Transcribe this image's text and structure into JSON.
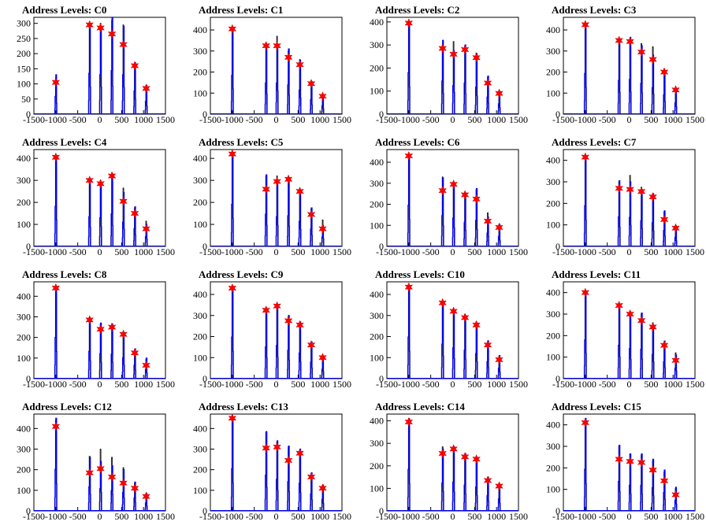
{
  "chart_data": [
    {
      "type": "histogram",
      "title": "Address Levels: C0",
      "xlim": [
        -1500,
        1500
      ],
      "ylim": [
        0,
        320
      ],
      "yticks": [
        0,
        50,
        100,
        150,
        200,
        250,
        300
      ],
      "xticks": [
        -1500,
        -1000,
        -500,
        0,
        500,
        1000,
        1500
      ],
      "peaks": [
        {
          "x": -1000,
          "blue": 130,
          "black": 120,
          "star": 105
        },
        {
          "x": -230,
          "blue": 300,
          "black": 300,
          "star": 295
        },
        {
          "x": 20,
          "blue": 290,
          "black": 300,
          "star": 285
        },
        {
          "x": 280,
          "blue": 320,
          "black": 310,
          "star": 265
        },
        {
          "x": 540,
          "blue": 290,
          "black": 295,
          "star": 230
        },
        {
          "x": 800,
          "blue": 170,
          "black": 165,
          "star": 160
        },
        {
          "x": 1060,
          "blue": 95,
          "black": 90,
          "star": 85
        }
      ]
    },
    {
      "type": "histogram",
      "title": "Address Levels: C1",
      "xlim": [
        -1500,
        1500
      ],
      "ylim": [
        0,
        460
      ],
      "yticks": [
        0,
        100,
        200,
        300,
        400
      ],
      "xticks": [
        -1500,
        -1000,
        -500,
        0,
        500,
        1000,
        1500
      ],
      "peaks": [
        {
          "x": -1000,
          "blue": 410,
          "black": 400,
          "star": 405
        },
        {
          "x": -230,
          "blue": 330,
          "black": 320,
          "star": 325
        },
        {
          "x": 20,
          "blue": 330,
          "black": 370,
          "star": 325
        },
        {
          "x": 280,
          "blue": 310,
          "black": 300,
          "star": 270
        },
        {
          "x": 540,
          "blue": 255,
          "black": 260,
          "star": 235
        },
        {
          "x": 800,
          "blue": 155,
          "black": 150,
          "star": 145
        },
        {
          "x": 1060,
          "blue": 90,
          "black": 85,
          "star": 85
        }
      ]
    },
    {
      "type": "histogram",
      "title": "Address Levels: C2",
      "xlim": [
        -1500,
        1500
      ],
      "ylim": [
        0,
        420
      ],
      "yticks": [
        0,
        100,
        200,
        300,
        400
      ],
      "xticks": [
        -1500,
        -1000,
        -500,
        0,
        500,
        1000,
        1500
      ],
      "peaks": [
        {
          "x": -1000,
          "blue": 400,
          "black": 395,
          "star": 395
        },
        {
          "x": -230,
          "blue": 320,
          "black": 300,
          "star": 285
        },
        {
          "x": 20,
          "blue": 275,
          "black": 315,
          "star": 260
        },
        {
          "x": 280,
          "blue": 300,
          "black": 295,
          "star": 280
        },
        {
          "x": 540,
          "blue": 260,
          "black": 265,
          "star": 245
        },
        {
          "x": 800,
          "blue": 165,
          "black": 160,
          "star": 135
        },
        {
          "x": 1060,
          "blue": 100,
          "black": 95,
          "star": 90
        }
      ]
    },
    {
      "type": "histogram",
      "title": "Address Levels: C3",
      "xlim": [
        -1500,
        1500
      ],
      "ylim": [
        0,
        460
      ],
      "yticks": [
        0,
        100,
        200,
        300,
        400
      ],
      "xticks": [
        -1500,
        -1000,
        -500,
        0,
        500,
        1000,
        1500
      ],
      "peaks": [
        {
          "x": -1000,
          "blue": 430,
          "black": 420,
          "star": 425
        },
        {
          "x": -230,
          "blue": 355,
          "black": 345,
          "star": 350
        },
        {
          "x": 20,
          "blue": 365,
          "black": 355,
          "star": 345
        },
        {
          "x": 280,
          "blue": 325,
          "black": 335,
          "star": 295
        },
        {
          "x": 540,
          "blue": 280,
          "black": 320,
          "star": 260
        },
        {
          "x": 800,
          "blue": 205,
          "black": 200,
          "star": 200
        },
        {
          "x": 1060,
          "blue": 120,
          "black": 115,
          "star": 115
        }
      ]
    },
    {
      "type": "histogram",
      "title": "Address Levels: C4",
      "xlim": [
        -1500,
        1500
      ],
      "ylim": [
        0,
        440
      ],
      "yticks": [
        0,
        100,
        200,
        300,
        400
      ],
      "xticks": [
        -1500,
        -1000,
        -500,
        0,
        500,
        1000,
        1500
      ],
      "peaks": [
        {
          "x": -1000,
          "blue": 405,
          "black": 400,
          "star": 405
        },
        {
          "x": -230,
          "blue": 300,
          "black": 290,
          "star": 300
        },
        {
          "x": 20,
          "blue": 290,
          "black": 300,
          "star": 285
        },
        {
          "x": 280,
          "blue": 330,
          "black": 320,
          "star": 320
        },
        {
          "x": 540,
          "blue": 245,
          "black": 265,
          "star": 205
        },
        {
          "x": 800,
          "blue": 180,
          "black": 175,
          "star": 150
        },
        {
          "x": 1060,
          "blue": 100,
          "black": 115,
          "star": 80
        }
      ]
    },
    {
      "type": "histogram",
      "title": "Address Levels: C5",
      "xlim": [
        -1500,
        1500
      ],
      "ylim": [
        0,
        440
      ],
      "yticks": [
        0,
        100,
        200,
        300,
        400
      ],
      "xticks": [
        -1500,
        -1000,
        -500,
        0,
        500,
        1000,
        1500
      ],
      "peaks": [
        {
          "x": -1000,
          "blue": 425,
          "black": 420,
          "star": 420
        },
        {
          "x": -230,
          "blue": 325,
          "black": 320,
          "star": 260
        },
        {
          "x": 20,
          "blue": 300,
          "black": 320,
          "star": 295
        },
        {
          "x": 280,
          "blue": 310,
          "black": 305,
          "star": 305
        },
        {
          "x": 540,
          "blue": 255,
          "black": 260,
          "star": 250
        },
        {
          "x": 800,
          "blue": 175,
          "black": 170,
          "star": 145
        },
        {
          "x": 1060,
          "blue": 95,
          "black": 120,
          "star": 80
        }
      ]
    },
    {
      "type": "histogram",
      "title": "Address Levels: C6",
      "xlim": [
        -1500,
        1500
      ],
      "ylim": [
        0,
        460
      ],
      "yticks": [
        0,
        100,
        200,
        300,
        400
      ],
      "xticks": [
        -1500,
        -1000,
        -500,
        0,
        500,
        1000,
        1500
      ],
      "peaks": [
        {
          "x": -1000,
          "blue": 435,
          "black": 430,
          "star": 430
        },
        {
          "x": -230,
          "blue": 325,
          "black": 330,
          "star": 265
        },
        {
          "x": 20,
          "blue": 300,
          "black": 295,
          "star": 295
        },
        {
          "x": 280,
          "blue": 255,
          "black": 250,
          "star": 245
        },
        {
          "x": 540,
          "blue": 275,
          "black": 270,
          "star": 225
        },
        {
          "x": 800,
          "blue": 140,
          "black": 160,
          "star": 120
        },
        {
          "x": 1060,
          "blue": 105,
          "black": 100,
          "star": 90
        }
      ]
    },
    {
      "type": "histogram",
      "title": "Address Levels: C7",
      "xlim": [
        -1500,
        1500
      ],
      "ylim": [
        0,
        450
      ],
      "yticks": [
        0,
        100,
        200,
        300,
        400
      ],
      "xticks": [
        -1500,
        -1000,
        -500,
        0,
        500,
        1000,
        1500
      ],
      "peaks": [
        {
          "x": -1000,
          "blue": 420,
          "black": 410,
          "star": 415
        },
        {
          "x": -230,
          "blue": 305,
          "black": 300,
          "star": 270
        },
        {
          "x": 20,
          "blue": 300,
          "black": 330,
          "star": 265
        },
        {
          "x": 280,
          "blue": 265,
          "black": 275,
          "star": 255
        },
        {
          "x": 540,
          "blue": 245,
          "black": 240,
          "star": 230
        },
        {
          "x": 800,
          "blue": 165,
          "black": 160,
          "star": 125
        },
        {
          "x": 1060,
          "blue": 95,
          "black": 90,
          "star": 85
        }
      ]
    },
    {
      "type": "histogram",
      "title": "Address Levels: C8",
      "xlim": [
        -1500,
        1500
      ],
      "ylim": [
        0,
        470
      ],
      "yticks": [
        0,
        100,
        200,
        300,
        400
      ],
      "xticks": [
        -1500,
        -1000,
        -500,
        0,
        500,
        1000,
        1500
      ],
      "peaks": [
        {
          "x": -1000,
          "blue": 445,
          "black": 440,
          "star": 440
        },
        {
          "x": -230,
          "blue": 295,
          "black": 290,
          "star": 285
        },
        {
          "x": 20,
          "blue": 270,
          "black": 265,
          "star": 240
        },
        {
          "x": 280,
          "blue": 265,
          "black": 260,
          "star": 250
        },
        {
          "x": 540,
          "blue": 225,
          "black": 220,
          "star": 215
        },
        {
          "x": 800,
          "blue": 145,
          "black": 140,
          "star": 125
        },
        {
          "x": 1060,
          "blue": 100,
          "black": 95,
          "star": 65
        }
      ]
    },
    {
      "type": "histogram",
      "title": "Address Levels: C9",
      "xlim": [
        -1500,
        1500
      ],
      "ylim": [
        0,
        460
      ],
      "yticks": [
        0,
        100,
        200,
        300,
        400
      ],
      "xticks": [
        -1500,
        -1000,
        -500,
        0,
        500,
        1000,
        1500
      ],
      "peaks": [
        {
          "x": -1000,
          "blue": 440,
          "black": 430,
          "star": 430
        },
        {
          "x": -230,
          "blue": 335,
          "black": 330,
          "star": 325
        },
        {
          "x": 20,
          "blue": 350,
          "black": 345,
          "star": 345
        },
        {
          "x": 280,
          "blue": 300,
          "black": 295,
          "star": 275
        },
        {
          "x": 540,
          "blue": 270,
          "black": 265,
          "star": 255
        },
        {
          "x": 800,
          "blue": 175,
          "black": 170,
          "star": 160
        },
        {
          "x": 1060,
          "blue": 100,
          "black": 110,
          "star": 100
        }
      ]
    },
    {
      "type": "histogram",
      "title": "Address Levels: C10",
      "xlim": [
        -1500,
        1500
      ],
      "ylim": [
        0,
        460
      ],
      "yticks": [
        0,
        100,
        200,
        300,
        400
      ],
      "xticks": [
        -1500,
        -1000,
        -500,
        0,
        500,
        1000,
        1500
      ],
      "peaks": [
        {
          "x": -1000,
          "blue": 440,
          "black": 435,
          "star": 435
        },
        {
          "x": -230,
          "blue": 365,
          "black": 360,
          "star": 360
        },
        {
          "x": 20,
          "blue": 325,
          "black": 320,
          "star": 320
        },
        {
          "x": 280,
          "blue": 300,
          "black": 305,
          "star": 290
        },
        {
          "x": 540,
          "blue": 265,
          "black": 270,
          "star": 255
        },
        {
          "x": 800,
          "blue": 180,
          "black": 175,
          "star": 160
        },
        {
          "x": 1060,
          "blue": 110,
          "black": 105,
          "star": 90
        }
      ]
    },
    {
      "type": "histogram",
      "title": "Address Levels: C11",
      "xlim": [
        -1500,
        1500
      ],
      "ylim": [
        0,
        450
      ],
      "yticks": [
        0,
        100,
        200,
        300,
        400
      ],
      "xticks": [
        -1500,
        -1000,
        -500,
        0,
        500,
        1000,
        1500
      ],
      "peaks": [
        {
          "x": -1000,
          "blue": 400,
          "black": 395,
          "star": 400
        },
        {
          "x": -230,
          "blue": 345,
          "black": 340,
          "star": 340
        },
        {
          "x": 20,
          "blue": 310,
          "black": 300,
          "star": 300
        },
        {
          "x": 280,
          "blue": 305,
          "black": 300,
          "star": 270
        },
        {
          "x": 540,
          "blue": 250,
          "black": 260,
          "star": 240
        },
        {
          "x": 800,
          "blue": 175,
          "black": 170,
          "star": 155
        },
        {
          "x": 1060,
          "blue": 110,
          "black": 120,
          "star": 85
        }
      ]
    },
    {
      "type": "histogram",
      "title": "Address Levels: C12",
      "xlim": [
        -1500,
        1500
      ],
      "ylim": [
        0,
        470
      ],
      "yticks": [
        0,
        100,
        200,
        300,
        400
      ],
      "xticks": [
        -1500,
        -1000,
        -500,
        0,
        500,
        1000,
        1500
      ],
      "peaks": [
        {
          "x": -1000,
          "blue": 450,
          "black": 440,
          "star": 410
        },
        {
          "x": -230,
          "blue": 260,
          "black": 265,
          "star": 185
        },
        {
          "x": 20,
          "blue": 240,
          "black": 300,
          "star": 205
        },
        {
          "x": 280,
          "blue": 220,
          "black": 260,
          "star": 165
        },
        {
          "x": 540,
          "blue": 200,
          "black": 210,
          "star": 135
        },
        {
          "x": 800,
          "blue": 140,
          "black": 135,
          "star": 110
        },
        {
          "x": 1060,
          "blue": 85,
          "black": 80,
          "star": 70
        }
      ]
    },
    {
      "type": "histogram",
      "title": "Address Levels: C13",
      "xlim": [
        -1500,
        1500
      ],
      "ylim": [
        0,
        470
      ],
      "yticks": [
        0,
        100,
        200,
        300,
        400
      ],
      "xticks": [
        -1500,
        -1000,
        -500,
        0,
        500,
        1000,
        1500
      ],
      "peaks": [
        {
          "x": -1000,
          "blue": 455,
          "black": 450,
          "star": 450
        },
        {
          "x": -230,
          "blue": 385,
          "black": 380,
          "star": 305
        },
        {
          "x": 20,
          "blue": 340,
          "black": 335,
          "star": 310
        },
        {
          "x": 280,
          "blue": 315,
          "black": 310,
          "star": 245
        },
        {
          "x": 540,
          "blue": 300,
          "black": 295,
          "star": 280
        },
        {
          "x": 800,
          "blue": 185,
          "black": 180,
          "star": 165
        },
        {
          "x": 1060,
          "blue": 125,
          "black": 120,
          "star": 110
        }
      ]
    },
    {
      "type": "histogram",
      "title": "Address Levels: C14",
      "xlim": [
        -1500,
        1500
      ],
      "ylim": [
        0,
        430
      ],
      "yticks": [
        0,
        100,
        200,
        300,
        400
      ],
      "xticks": [
        -1500,
        -1000,
        -500,
        0,
        500,
        1000,
        1500
      ],
      "peaks": [
        {
          "x": -1000,
          "blue": 410,
          "black": 405,
          "star": 395
        },
        {
          "x": -230,
          "blue": 275,
          "black": 285,
          "star": 255
        },
        {
          "x": 20,
          "blue": 285,
          "black": 280,
          "star": 275
        },
        {
          "x": 280,
          "blue": 255,
          "black": 250,
          "star": 240
        },
        {
          "x": 540,
          "blue": 235,
          "black": 230,
          "star": 230
        },
        {
          "x": 800,
          "blue": 150,
          "black": 145,
          "star": 135
        },
        {
          "x": 1060,
          "blue": 120,
          "black": 115,
          "star": 110
        }
      ]
    },
    {
      "type": "histogram",
      "title": "Address Levels: C15",
      "xlim": [
        -1500,
        1500
      ],
      "ylim": [
        0,
        450
      ],
      "yticks": [
        0,
        100,
        200,
        300,
        400
      ],
      "xticks": [
        -1500,
        -1000,
        -500,
        0,
        500,
        1000,
        1500
      ],
      "peaks": [
        {
          "x": -1000,
          "blue": 430,
          "black": 420,
          "star": 410
        },
        {
          "x": -230,
          "blue": 305,
          "black": 300,
          "star": 240
        },
        {
          "x": 20,
          "blue": 265,
          "black": 265,
          "star": 230
        },
        {
          "x": 280,
          "blue": 265,
          "black": 260,
          "star": 225
        },
        {
          "x": 540,
          "blue": 240,
          "black": 235,
          "star": 190
        },
        {
          "x": 800,
          "blue": 190,
          "black": 180,
          "star": 140
        },
        {
          "x": 1060,
          "blue": 110,
          "black": 105,
          "star": 75
        }
      ]
    }
  ],
  "style": {
    "blue": "#0000ff",
    "black": "#000000",
    "marker_fill": "#ff0000",
    "marker_stroke": "#cc0000"
  }
}
